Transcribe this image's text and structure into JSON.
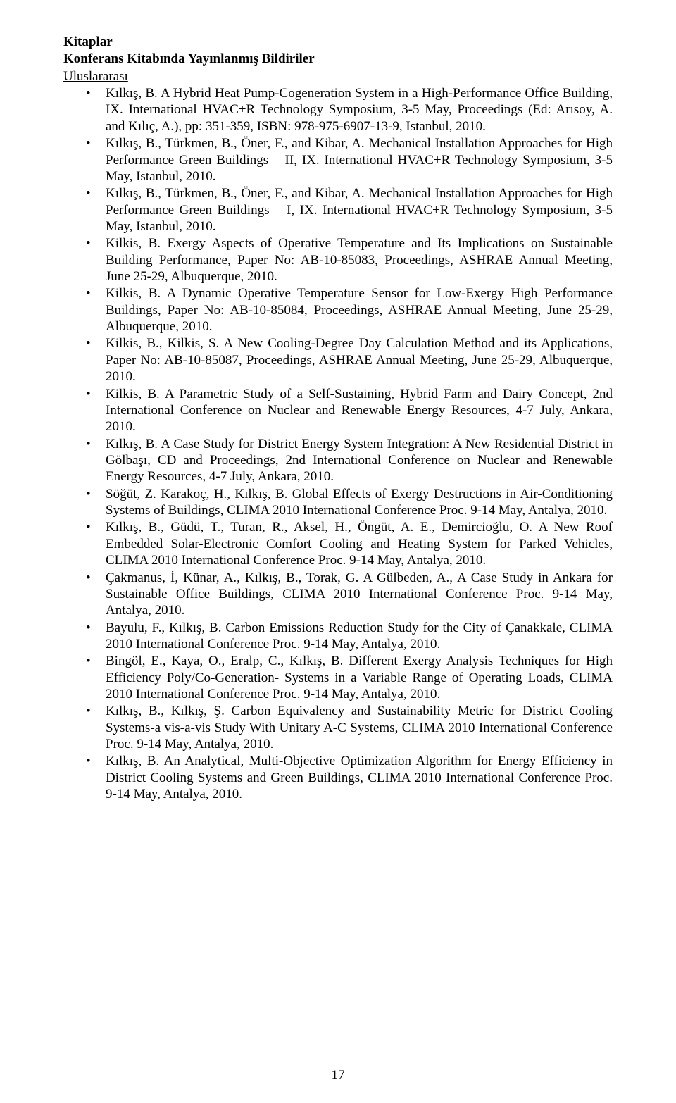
{
  "heading_main": "Kitaplar",
  "heading_section": "Konferans Kitabında Yayınlanmış Bildiriler",
  "heading_sub": "Uluslararası",
  "page_number": "17",
  "items": [
    "Kılkış, B. A Hybrid Heat Pump-Cogeneration System in a High-Performance Office Building, IX. International HVAC+R Technology Symposium, 3-5 May, Proceedings (Ed: Arısoy, A. and Kılıç, A.), pp: 351-359, ISBN: 978-975-6907-13-9, Istanbul, 2010.",
    "Kılkış, B., Türkmen, B., Öner, F., and Kibar, A. Mechanical Installation Approaches for High Performance Green Buildings – II, IX. International HVAC+R Technology Symposium, 3-5 May, Istanbul, 2010.",
    "Kılkış, B., Türkmen, B., Öner, F., and Kibar, A. Mechanical Installation Approaches for High Performance Green Buildings – I, IX. International HVAC+R Technology Symposium, 3-5 May, Istanbul, 2010.",
    "Kilkis, B. Exergy Aspects of Operative Temperature and Its Implications on Sustainable Building Performance, Paper No:  AB-10-85083, Proceedings, ASHRAE Annual Meeting, June 25-29, Albuquerque, 2010.",
    "Kilkis, B. A Dynamic Operative Temperature Sensor for Low-Exergy High Performance Buildings, Paper No:  AB-10-85084, Proceedings, ASHRAE Annual Meeting, June 25-29, Albuquerque, 2010.",
    "Kilkis, B., Kilkis, S. A New Cooling-Degree Day Calculation Method and its Applications, Paper No:  AB-10-85087, Proceedings, ASHRAE Annual Meeting, June 25-29, Albuquerque, 2010.",
    "Kilkis, B. A Parametric Study of a Self-Sustaining, Hybrid Farm and Dairy Concept, 2nd International Conference on Nuclear and Renewable Energy Resources, 4-7 July, Ankara, 2010.",
    "Kılkış, B. A Case Study for District Energy System Integration: A New Residential District in Gölbaşı, CD and Proceedings, 2nd International Conference on Nuclear and Renewable Energy Resources, 4-7 July, Ankara, 2010.",
    "Söğüt, Z. Karakoç, H., Kılkış, B. Global Effects of Exergy Destructions in Air-Conditioning Systems of Buildings, CLIMA 2010 International Conference Proc. 9-14 May, Antalya, 2010.",
    "Kılkış, B., Güdü, T., Turan, R., Aksel, H., Öngüt, A. E., Demircioğlu, O. A New Roof Embedded Solar-Electronic Comfort Cooling and Heating System for Parked Vehicles, CLIMA 2010 International Conference Proc. 9-14 May, Antalya, 2010.",
    "Çakmanus, İ, Künar, A., Kılkış, B., Torak, G. A Gülbeden, A., A Case Study in Ankara for Sustainable Office Buildings, CLIMA 2010 International Conference Proc. 9-14 May, Antalya, 2010.",
    "Bayulu, F., Kılkış, B. Carbon Emissions Reduction Study for the City of Çanakkale, CLIMA 2010 International Conference Proc. 9-14 May, Antalya, 2010.",
    "Bingöl, E., Kaya, O., Eralp, C., Kılkış, B. Different Exergy Analysis Techniques for High Efficiency Poly/Co-Generation- Systems in a Variable Range of Operating Loads, CLIMA 2010 International Conference Proc. 9-14 May, Antalya, 2010.",
    "Kılkış, B., Kılkış, Ş. Carbon Equivalency and Sustainability Metric for District Cooling Systems-a vis-a-vis Study With Unitary A-C Systems, CLIMA 2010 International Conference Proc. 9-14 May, Antalya, 2010.",
    "Kılkış, B. An Analytical, Multi-Objective Optimization Algorithm for Energy Efficiency in District Cooling Systems and Green Buildings, CLIMA 2010 International Conference Proc. 9-14 May, Antalya, 2010."
  ]
}
